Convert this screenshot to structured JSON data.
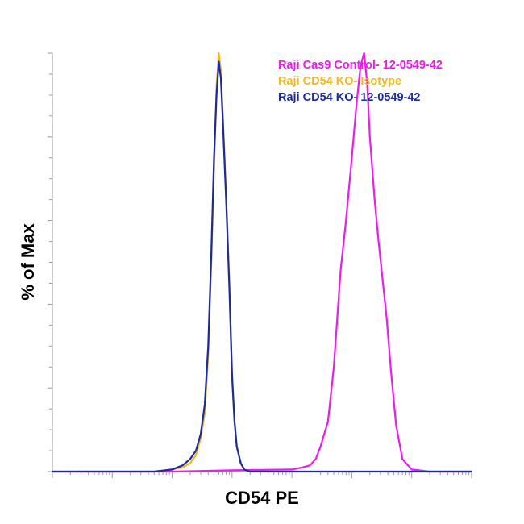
{
  "chart_data": {
    "type": "line",
    "title": "",
    "xlabel": "CD54 PE",
    "ylabel": "% of Max",
    "xscale": "log",
    "xlim": [
      10,
      100000000
    ],
    "ylim": [
      0,
      100
    ],
    "grid": false,
    "legend_position": "top-right",
    "series": [
      {
        "name": "Raji Cas9 Control- 12-0549-42",
        "color": "#ee1aee",
        "x": [
          10,
          1000,
          10000,
          100000,
          150000,
          200000,
          250000,
          300000,
          400000,
          500000,
          650000,
          800000,
          1000000,
          1200000,
          1400000,
          1600000,
          1800000,
          2000000,
          2400000,
          2800000,
          3200000,
          3800000,
          4500000,
          5500000,
          7000000,
          10000000,
          20000000,
          100000000
        ],
        "y": [
          0,
          0,
          0.3,
          0.5,
          1,
          1.5,
          3,
          6,
          12,
          25,
          48,
          60,
          75,
          88,
          97,
          100,
          93,
          80,
          65,
          55,
          47,
          37,
          24,
          11,
          3,
          0.5,
          0,
          0
        ]
      },
      {
        "name": "Raji CD54 KO- Isotype",
        "color": "#f4b81c",
        "x": [
          10,
          500,
          1000,
          1500,
          2000,
          2500,
          3000,
          3500,
          4000,
          4500,
          5000,
          5500,
          6000,
          6500,
          7000,
          8000,
          9000,
          10000,
          11000,
          12000,
          14000,
          16000,
          20000,
          30000,
          100000,
          100000000
        ],
        "y": [
          0,
          0,
          0.5,
          1,
          2,
          4,
          8,
          14,
          28,
          50,
          72,
          92,
          100,
          96,
          85,
          65,
          45,
          22,
          12,
          6,
          2,
          0.5,
          0,
          0,
          0,
          0
        ]
      },
      {
        "name": "Raji CD54 KO- 12-0549-42",
        "color": "#1c2c9c",
        "x": [
          10,
          500,
          1000,
          1500,
          2000,
          2500,
          3000,
          3500,
          4000,
          4500,
          5000,
          5500,
          6000,
          6500,
          7000,
          8000,
          9000,
          10000,
          11000,
          12000,
          14000,
          16000,
          20000,
          30000,
          100000,
          100000000
        ],
        "y": [
          0,
          0,
          0.5,
          1.5,
          3,
          5,
          9,
          16,
          30,
          52,
          75,
          90,
          98,
          94,
          84,
          64,
          44,
          23,
          12,
          6,
          2,
          0.5,
          0,
          0,
          0,
          0
        ]
      }
    ]
  }
}
